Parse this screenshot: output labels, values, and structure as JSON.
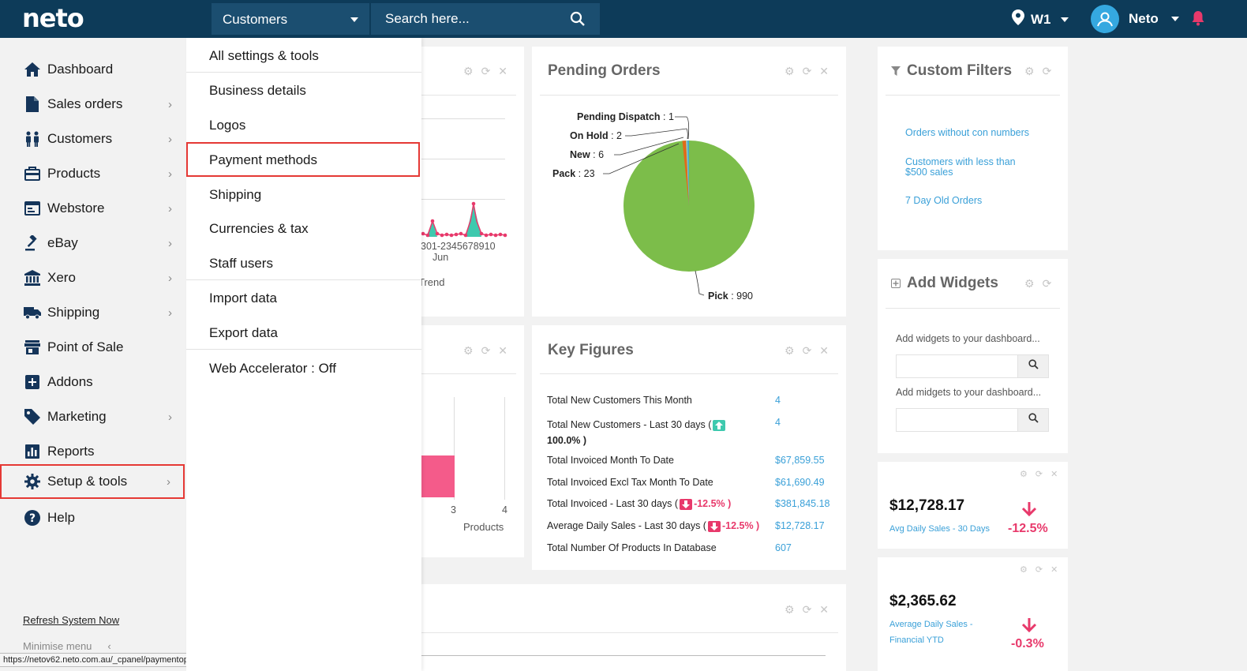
{
  "topbar": {
    "logo": "neto",
    "scope_label": "Customers",
    "search_placeholder": "Search here...",
    "location": "W1",
    "user_name": "Neto"
  },
  "sidebar": {
    "items": [
      {
        "label": "Dashboard",
        "icon": "home-icon",
        "has_submenu": false
      },
      {
        "label": "Sales orders",
        "icon": "document-icon",
        "has_submenu": true
      },
      {
        "label": "Customers",
        "icon": "people-icon",
        "has_submenu": true
      },
      {
        "label": "Products",
        "icon": "products-icon",
        "has_submenu": true
      },
      {
        "label": "Webstore",
        "icon": "webstore-icon",
        "has_submenu": true
      },
      {
        "label": "eBay",
        "icon": "gavel-icon",
        "has_submenu": true
      },
      {
        "label": "Xero",
        "icon": "bank-icon",
        "has_submenu": true
      },
      {
        "label": "Shipping",
        "icon": "truck-icon",
        "has_submenu": true
      },
      {
        "label": "Point of Sale",
        "icon": "store-icon",
        "has_submenu": false
      },
      {
        "label": "Addons",
        "icon": "plus-square-icon",
        "has_submenu": false
      },
      {
        "label": "Marketing",
        "icon": "tag-icon",
        "has_submenu": true
      },
      {
        "label": "Reports",
        "icon": "bar-chart-icon",
        "has_submenu": false
      },
      {
        "label": "Setup & tools",
        "icon": "gear-icon",
        "has_submenu": true,
        "selected": true
      },
      {
        "label": "Help",
        "icon": "question-icon",
        "has_submenu": false
      }
    ],
    "refresh_label": "Refresh System Now",
    "minimise_label": "Minimise menu",
    "status_url": "https://netov62.neto.com.au/_cpanel/paymentoptions"
  },
  "dropdown": {
    "items": [
      {
        "label": "All settings & tools"
      },
      {
        "label": "Business details"
      },
      {
        "label": "Logos"
      },
      {
        "label": "Payment methods",
        "selected": true
      },
      {
        "label": "Shipping"
      },
      {
        "label": "Currencies & tax"
      },
      {
        "label": "Staff users"
      },
      {
        "label": "Import data"
      },
      {
        "label": "Export data"
      },
      {
        "label": "Web Accelerator : Off"
      }
    ]
  },
  "hidden_panel": {
    "axis_dates": "30",
    "axis_ticks": "1-2345678910",
    "axis_month": "Jun",
    "footer_fragment": "Trend",
    "bar_ticks": [
      "3",
      "4"
    ],
    "bar_axis_label": "Products"
  },
  "pending_orders": {
    "title": "Pending Orders",
    "slices": [
      {
        "name": "Pending Dispatch",
        "value": "1",
        "color": "#4aa3df"
      },
      {
        "name": "On Hold",
        "value": "2",
        "color": "#3ab5a0"
      },
      {
        "name": "New",
        "value": "6",
        "color": "#8fd0e8"
      },
      {
        "name": "Pack",
        "value": "23",
        "color": "#e06b1a"
      },
      {
        "name": "Pick",
        "value": "990",
        "color": "#7cbd4a"
      }
    ]
  },
  "key_figures": {
    "title": "Key Figures",
    "rows": [
      {
        "label": "Total New Customers This Month",
        "value": "4"
      },
      {
        "label": "Total New Customers - Last 30 days (",
        "change": "100.0% )",
        "value": "4"
      },
      {
        "label": "Total Invoiced Month To Date",
        "value": "$67,859.55"
      },
      {
        "label": "Total Invoiced Excl Tax Month To Date",
        "value": "$61,690.49"
      },
      {
        "label": "Total Invoiced - Last 30 days (",
        "change": "-12.5% )",
        "value": "$381,845.18"
      },
      {
        "label": "Average Daily Sales - Last 30 days (",
        "change": "-12.5% )",
        "value": "$12,728.17"
      },
      {
        "label": "Total Number Of Products In Database",
        "value": "607"
      }
    ]
  },
  "custom_filters": {
    "title": "Custom Filters",
    "links": [
      "Orders without con numbers",
      "Customers with less than $500 sales",
      "7 Day Old Orders"
    ]
  },
  "add_widgets": {
    "title": "Add Widgets",
    "hint1": "Add widgets to your dashboard...",
    "hint2": "Add midgets to your dashboard..."
  },
  "stats": [
    {
      "value": "$12,728.17",
      "label": "Avg Daily Sales - 30 Days",
      "change": "-12.5%"
    },
    {
      "value": "$2,365.62",
      "label": "Average Daily Sales - Financial YTD",
      "change": "-0.3%"
    }
  ],
  "colors": {
    "topbar": "#0d3b59",
    "accent": "#3aa0d8",
    "negative": "#e8396b",
    "selection": "#e53935",
    "pie_major": "#7cbd4a"
  }
}
